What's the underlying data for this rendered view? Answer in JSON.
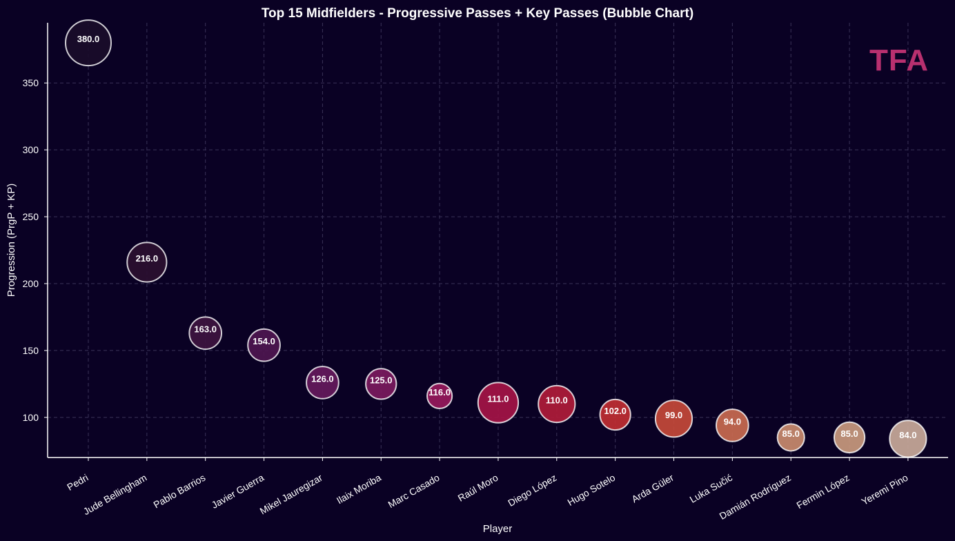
{
  "chart_data": {
    "type": "scatter",
    "title": "Top 15 Midfielders - Progressive Passes + Key Passes (Bubble Chart)",
    "xlabel": "Player",
    "ylabel": "Progression (PrgP + KP)",
    "categories": [
      "Pedri",
      "Jude Bellingham",
      "Pablo Barrios",
      "Javier Guerra",
      "Mikel Jauregizar",
      "Ilaix Moriba",
      "Marc Casado",
      "Raúl Moro",
      "Diego López",
      "Hugo Sotelo",
      "Arda Güler",
      "Luka Sučić",
      "Damián Rodríguez",
      "Fermin López",
      "Yeremi Pino"
    ],
    "values": [
      380.0,
      216.0,
      163.0,
      154.0,
      126.0,
      125.0,
      116.0,
      111.0,
      110.0,
      102.0,
      99.0,
      94.0,
      85.0,
      85.0,
      84.0
    ],
    "value_labels": [
      "380.0",
      "216.0",
      "163.0",
      "154.0",
      "126.0",
      "125.0",
      "116.0",
      "111.0",
      "110.0",
      "102.0",
      "99.0",
      "94.0",
      "85.0",
      "85.0",
      "84.0"
    ],
    "bubble_size_relative": [
      1.0,
      0.75,
      0.5,
      0.5,
      0.5,
      0.45,
      0.3,
      0.78,
      0.65,
      0.45,
      0.65,
      0.5,
      0.35,
      0.45,
      0.65
    ],
    "bubble_colors": [
      "#1a0c2a",
      "#2b0f30",
      "#3e1440",
      "#4e1650",
      "#65195c",
      "#7b1a5e",
      "#97195c",
      "#a51346",
      "#b01b3a",
      "#c02e32",
      "#c5493a",
      "#c96a50",
      "#c98a6e",
      "#c9997e",
      "#c9a99a"
    ],
    "ylim": [
      70,
      395
    ],
    "yticks": [
      100,
      150,
      200,
      250,
      300,
      350
    ],
    "grid": true,
    "legend": "none"
  },
  "logo": {
    "text": "TFA",
    "color": "#b8306f"
  },
  "colors": {
    "background": "#0a0124",
    "axis": "#ffffff",
    "grid": "#3a3358",
    "bubble_edge": "#ffffff"
  }
}
